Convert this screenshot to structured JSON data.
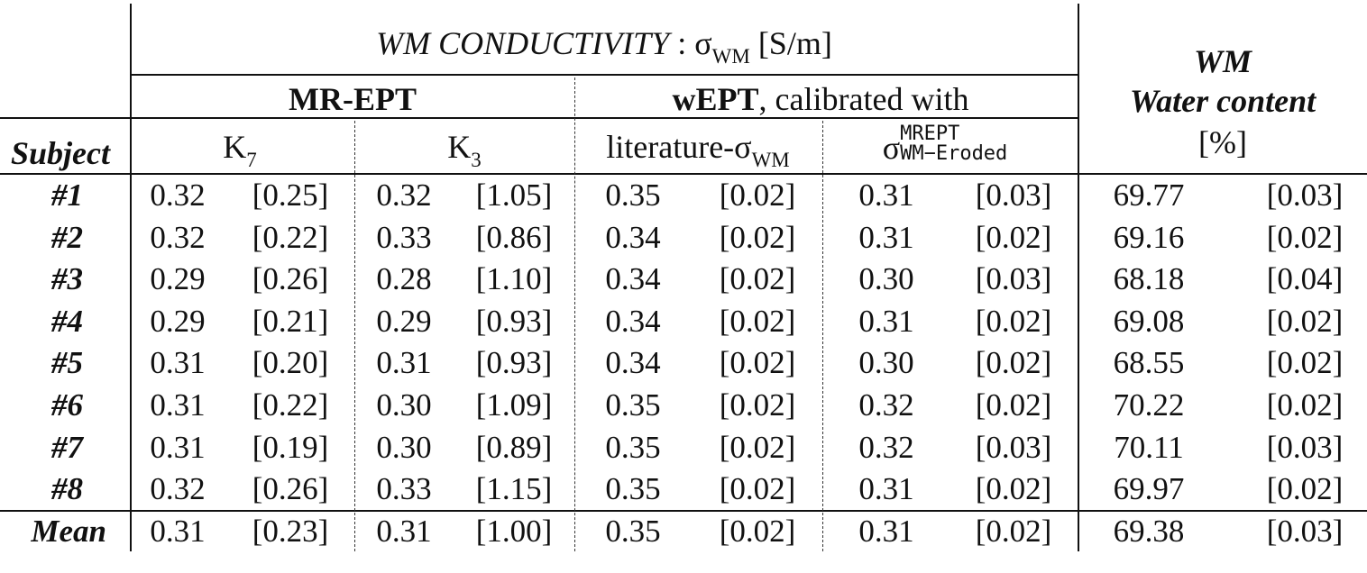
{
  "header": {
    "wm_conductivity_title": "WM CONDUCTIVITY",
    "sigma_unit_prefix": " : σ",
    "sigma_unit_sub": "WM",
    "sigma_unit_suffix": " [S/m]",
    "mr_ept": "MR-EPT",
    "wept": "wEPT",
    "calibrated_with": ",  calibrated with",
    "wm": "WM",
    "water_content": "Water content",
    "percent": "[%]",
    "subject": "Subject",
    "k7_base": "K",
    "k7_sub": "7",
    "k3_base": "K",
    "k3_sub": "3",
    "literature_prefix": "literature-σ",
    "literature_sub": "WM",
    "sigma_eroded_base": "σ",
    "sigma_eroded_sup": "MREPT",
    "sigma_eroded_sub": "WM−Eroded"
  },
  "rows": [
    {
      "label": "#1",
      "k7": "0.32",
      "k7_sd": "[0.25]",
      "k3": "0.32",
      "k3_sd": "[1.05]",
      "lit": "0.35",
      "lit_sd": "[0.02]",
      "ero": "0.31",
      "ero_sd": "[0.03]",
      "wc": "69.77",
      "wc_sd": "[0.03]"
    },
    {
      "label": "#2",
      "k7": "0.32",
      "k7_sd": "[0.22]",
      "k3": "0.33",
      "k3_sd": "[0.86]",
      "lit": "0.34",
      "lit_sd": "[0.02]",
      "ero": "0.31",
      "ero_sd": "[0.02]",
      "wc": "69.16",
      "wc_sd": "[0.02]"
    },
    {
      "label": "#3",
      "k7": "0.29",
      "k7_sd": "[0.26]",
      "k3": "0.28",
      "k3_sd": "[1.10]",
      "lit": "0.34",
      "lit_sd": "[0.02]",
      "ero": "0.30",
      "ero_sd": "[0.03]",
      "wc": "68.18",
      "wc_sd": "[0.04]"
    },
    {
      "label": "#4",
      "k7": "0.29",
      "k7_sd": "[0.21]",
      "k3": "0.29",
      "k3_sd": "[0.93]",
      "lit": "0.34",
      "lit_sd": "[0.02]",
      "ero": "0.31",
      "ero_sd": "[0.02]",
      "wc": "69.08",
      "wc_sd": "[0.02]"
    },
    {
      "label": "#5",
      "k7": "0.31",
      "k7_sd": "[0.20]",
      "k3": "0.31",
      "k3_sd": "[0.93]",
      "lit": "0.34",
      "lit_sd": "[0.02]",
      "ero": "0.30",
      "ero_sd": "[0.02]",
      "wc": "68.55",
      "wc_sd": "[0.02]"
    },
    {
      "label": "#6",
      "k7": "0.31",
      "k7_sd": "[0.22]",
      "k3": "0.30",
      "k3_sd": "[1.09]",
      "lit": "0.35",
      "lit_sd": "[0.02]",
      "ero": "0.32",
      "ero_sd": "[0.02]",
      "wc": "70.22",
      "wc_sd": "[0.02]"
    },
    {
      "label": "#7",
      "k7": "0.31",
      "k7_sd": "[0.19]",
      "k3": "0.30",
      "k3_sd": "[0.89]",
      "lit": "0.35",
      "lit_sd": "[0.02]",
      "ero": "0.32",
      "ero_sd": "[0.03]",
      "wc": "70.11",
      "wc_sd": "[0.03]"
    },
    {
      "label": "#8",
      "k7": "0.32",
      "k7_sd": "[0.26]",
      "k3": "0.33",
      "k3_sd": "[1.15]",
      "lit": "0.35",
      "lit_sd": "[0.02]",
      "ero": "0.31",
      "ero_sd": "[0.02]",
      "wc": "69.97",
      "wc_sd": "[0.02]"
    }
  ],
  "mean": {
    "label": "Mean",
    "k7": "0.31",
    "k7_sd": "[0.23]",
    "k3": "0.31",
    "k3_sd": "[1.00]",
    "lit": "0.35",
    "lit_sd": "[0.02]",
    "ero": "0.31",
    "ero_sd": "[0.02]",
    "wc": "69.38",
    "wc_sd": "[0.03]"
  }
}
